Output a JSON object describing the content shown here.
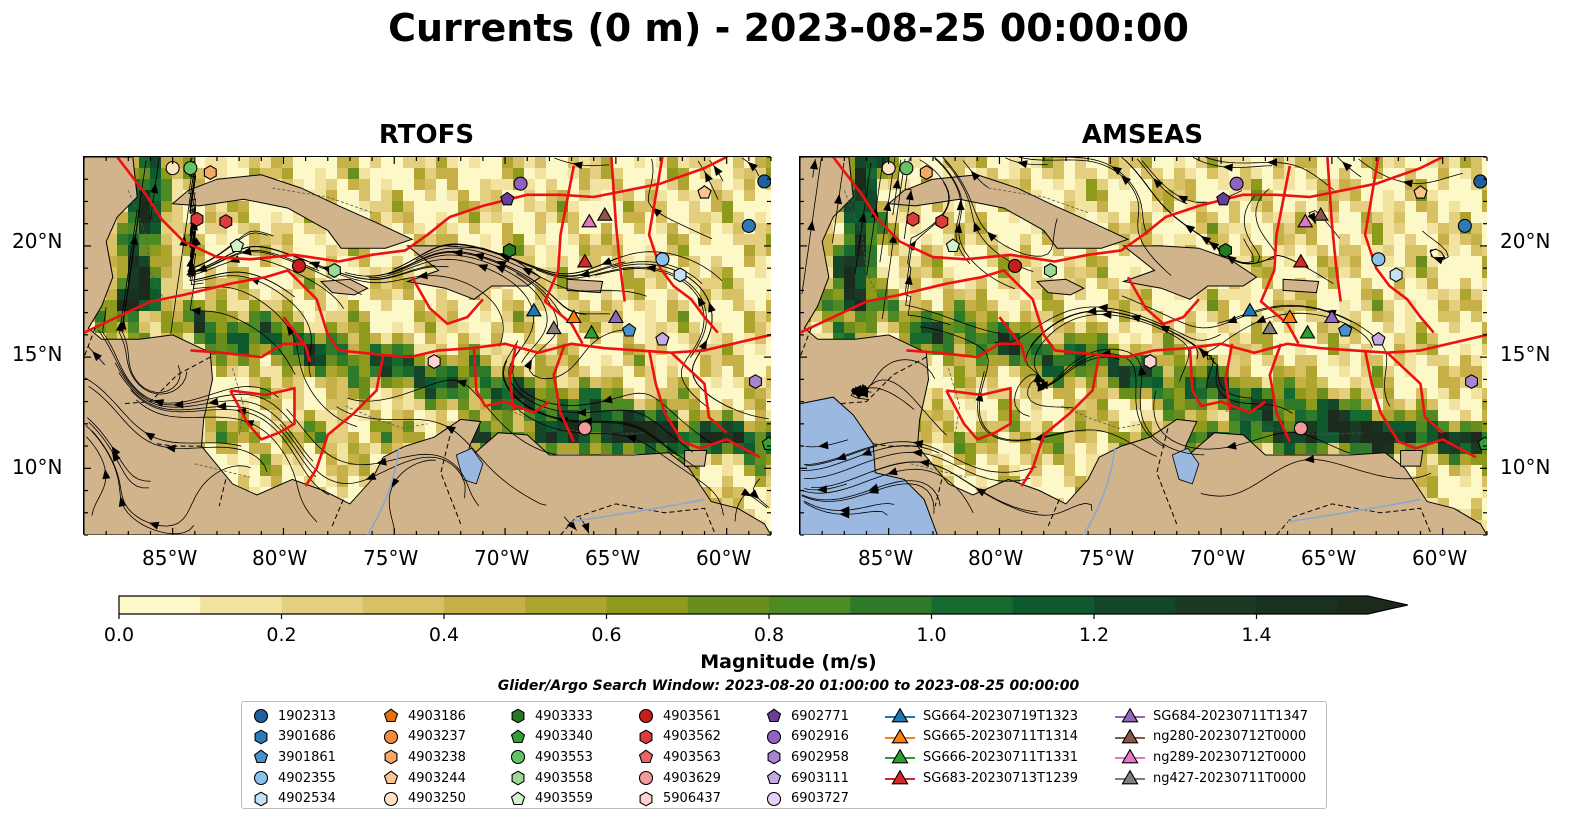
{
  "title": "Currents (0 m) - 2023-08-25 00:00:00",
  "panels": [
    {
      "title": "RTOFS"
    },
    {
      "title": "AMSEAS"
    }
  ],
  "lat_ticks": [
    "20°N",
    "15°N",
    "10°N"
  ],
  "lon_ticks": [
    "85°W",
    "80°W",
    "75°W",
    "70°W",
    "65°W",
    "60°W"
  ],
  "colorbar": {
    "label": "Magnitude (m/s)",
    "ticks": [
      "0.0",
      "0.2",
      "0.4",
      "0.6",
      "0.8",
      "1.0",
      "1.2",
      "1.4"
    ],
    "min": 0.0,
    "max": 1.6,
    "extend": "max",
    "colors": [
      "#fdf8c8",
      "#f2e3a0",
      "#e4cf80",
      "#d8c064",
      "#c8b048",
      "#aea430",
      "#8e9a1c",
      "#6a8e1e",
      "#4e8a24",
      "#2e7a2a",
      "#166a30",
      "#0e5a2e",
      "#14462a",
      "#1a3a26",
      "#1a3020",
      "#1c2a1c"
    ]
  },
  "search_window": "Glider/Argo Search Window: 2023-08-20 01:00:00 to 2023-08-25 00:00:00",
  "legend": {
    "columns": [
      [
        {
          "label": "1902313",
          "marker": "circle",
          "color": "#1f5f9e"
        },
        {
          "label": "3901686",
          "marker": "hexagon",
          "color": "#2c7bb6"
        },
        {
          "label": "3901861",
          "marker": "pentagon",
          "color": "#4a90c8"
        },
        {
          "label": "4902355",
          "marker": "circle",
          "color": "#8cc2ea"
        },
        {
          "label": "4902534",
          "marker": "hexagon",
          "color": "#c6e2f6"
        }
      ],
      [
        {
          "label": "4903186",
          "marker": "pentagon",
          "color": "#e6700a"
        },
        {
          "label": "4903237",
          "marker": "circle",
          "color": "#f58c3a"
        },
        {
          "label": "4903238",
          "marker": "hexagon",
          "color": "#f8a860"
        },
        {
          "label": "4903244",
          "marker": "pentagon",
          "color": "#fbc590"
        },
        {
          "label": "4903250",
          "marker": "circle",
          "color": "#fde3c4"
        }
      ],
      [
        {
          "label": "4903333",
          "marker": "hexagon",
          "color": "#237a23"
        },
        {
          "label": "4903340",
          "marker": "pentagon",
          "color": "#33a033"
        },
        {
          "label": "4903553",
          "marker": "circle",
          "color": "#66c266"
        },
        {
          "label": "4903558",
          "marker": "hexagon",
          "color": "#9ad99a"
        },
        {
          "label": "4903559",
          "marker": "pentagon",
          "color": "#d2f2cc"
        }
      ],
      [
        {
          "label": "4903561",
          "marker": "circle",
          "color": "#c41e1e"
        },
        {
          "label": "4903562",
          "marker": "hexagon",
          "color": "#dc3c3c"
        },
        {
          "label": "4903563",
          "marker": "pentagon",
          "color": "#ec6464"
        },
        {
          "label": "4903629",
          "marker": "circle",
          "color": "#f49a9a"
        },
        {
          "label": "5906437",
          "marker": "hexagon",
          "color": "#fcd2d2"
        }
      ],
      [
        {
          "label": "6902771",
          "marker": "pentagon",
          "color": "#6a3d9a"
        },
        {
          "label": "6902916",
          "marker": "circle",
          "color": "#8e62be"
        },
        {
          "label": "6902958",
          "marker": "hexagon",
          "color": "#a884d2"
        },
        {
          "label": "6903111",
          "marker": "pentagon",
          "color": "#c6aae4"
        },
        {
          "label": "6903727",
          "marker": "circle",
          "color": "#e6d2f6"
        }
      ],
      [
        {
          "label": "SG664-20230719T1323",
          "marker": "triangle-line",
          "color": "#1f77b4"
        },
        {
          "label": "SG665-20230711T1314",
          "marker": "triangle-line",
          "color": "#ff7f0e"
        },
        {
          "label": "SG666-20230711T1331",
          "marker": "triangle-line",
          "color": "#2ca02c"
        },
        {
          "label": "SG683-20230713T1239",
          "marker": "triangle-line",
          "color": "#d62728"
        }
      ],
      [
        {
          "label": "SG684-20230711T1347",
          "marker": "triangle-line",
          "color": "#9467bd"
        },
        {
          "label": "ng280-20230712T0000",
          "marker": "triangle-line",
          "color": "#8c564b"
        },
        {
          "label": "ng289-20230712T0000",
          "marker": "triangle-line",
          "color": "#e377c2"
        },
        {
          "label": "ng427-20230711T0000",
          "marker": "triangle-line",
          "color": "#7f7f7f"
        }
      ]
    ]
  },
  "map": {
    "lon_range": [
      -89,
      -58
    ],
    "lat_range": [
      7,
      24
    ],
    "land_color": "#d2b48c",
    "pacific_color": "#9ab8e0",
    "eez_color": "#ee1111"
  },
  "markers": [
    {
      "lon": -84.2,
      "lat": 23.5,
      "shape": "circle",
      "color": "#66c266"
    },
    {
      "lon": -85.0,
      "lat": 23.5,
      "shape": "circle",
      "color": "#fde3c4"
    },
    {
      "lon": -83.3,
      "lat": 23.3,
      "shape": "hexagon",
      "color": "#f8a860"
    },
    {
      "lon": -83.9,
      "lat": 21.2,
      "shape": "hexagon",
      "color": "#dc3c3c"
    },
    {
      "lon": -82.6,
      "lat": 21.1,
      "shape": "hexagon",
      "color": "#dc3c3c"
    },
    {
      "lon": -82.1,
      "lat": 20.0,
      "shape": "pentagon",
      "color": "#d2f2cc"
    },
    {
      "lon": -79.3,
      "lat": 19.1,
      "shape": "circle",
      "color": "#c41e1e"
    },
    {
      "lon": -77.7,
      "lat": 18.9,
      "shape": "hexagon",
      "color": "#9ad99a"
    },
    {
      "lon": -69.3,
      "lat": 22.8,
      "shape": "circle",
      "color": "#8e62be"
    },
    {
      "lon": -69.9,
      "lat": 22.1,
      "shape": "pentagon",
      "color": "#6a3d9a"
    },
    {
      "lon": -69.8,
      "lat": 19.8,
      "shape": "hexagon",
      "color": "#237a23"
    },
    {
      "lon": -58.3,
      "lat": 22.9,
      "shape": "circle",
      "color": "#1f5f9e"
    },
    {
      "lon": -61.0,
      "lat": 22.4,
      "shape": "pentagon",
      "color": "#fbc590"
    },
    {
      "lon": -59.0,
      "lat": 20.9,
      "shape": "circle",
      "color": "#2c7bb6"
    },
    {
      "lon": -62.9,
      "lat": 19.4,
      "shape": "circle",
      "color": "#8cc2ea"
    },
    {
      "lon": -62.1,
      "lat": 18.7,
      "shape": "hexagon",
      "color": "#c6e2f6"
    },
    {
      "lon": -64.4,
      "lat": 16.2,
      "shape": "pentagon",
      "color": "#4a90c8"
    },
    {
      "lon": -62.9,
      "lat": 15.8,
      "shape": "pentagon",
      "color": "#c6aae4"
    },
    {
      "lon": -58.7,
      "lat": 13.9,
      "shape": "hexagon",
      "color": "#a884d2"
    },
    {
      "lon": -58.1,
      "lat": 11.1,
      "shape": "pentagon",
      "color": "#33a033"
    },
    {
      "lon": -73.2,
      "lat": 14.8,
      "shape": "hexagon",
      "color": "#fcd2d2"
    },
    {
      "lon": -66.4,
      "lat": 11.8,
      "shape": "circle",
      "color": "#f49a9a"
    },
    {
      "lon": -66.2,
      "lat": 21.1,
      "shape": "triangle",
      "color": "#e377c2"
    },
    {
      "lon": -65.5,
      "lat": 21.4,
      "shape": "triangle",
      "color": "#8c564b"
    },
    {
      "lon": -66.4,
      "lat": 19.3,
      "shape": "triangle",
      "color": "#d62728"
    },
    {
      "lon": -68.7,
      "lat": 17.1,
      "shape": "triangle",
      "color": "#1f77b4"
    },
    {
      "lon": -67.8,
      "lat": 16.3,
      "shape": "triangle",
      "color": "#7f7f7f"
    },
    {
      "lon": -66.9,
      "lat": 16.8,
      "shape": "triangle",
      "color": "#ff7f0e"
    },
    {
      "lon": -66.1,
      "lat": 16.1,
      "shape": "triangle",
      "color": "#2ca02c"
    },
    {
      "lon": -65.0,
      "lat": 16.8,
      "shape": "triangle",
      "color": "#9467bd"
    }
  ]
}
